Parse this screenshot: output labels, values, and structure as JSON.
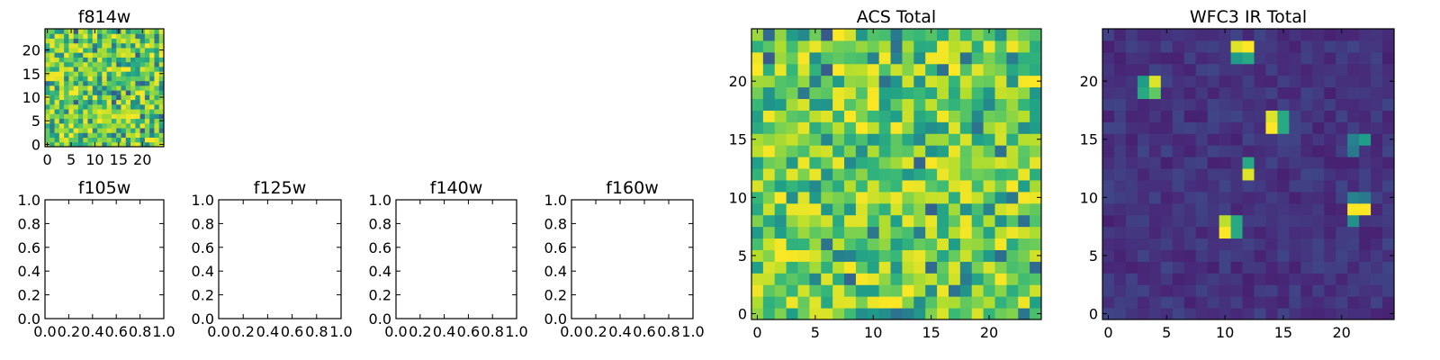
{
  "chart_data": [
    {
      "type": "heatmap",
      "title": "f814w",
      "grid_size": 25,
      "pattern": "noise",
      "xticks": [
        "0",
        "5",
        "10",
        "15",
        "20"
      ],
      "yticks": [
        "0",
        "5",
        "10",
        "15",
        "20"
      ],
      "xlim": [
        -0.5,
        24.5
      ],
      "ylim": [
        -0.5,
        24.5
      ],
      "colormap": "viridis"
    },
    {
      "type": "heatmap",
      "title": "f105w",
      "empty": true,
      "xticks": [
        "0.0",
        "0.2",
        "0.4",
        "0.6",
        "0.8",
        "1.0"
      ],
      "yticks": [
        "0.0",
        "0.2",
        "0.4",
        "0.6",
        "0.8",
        "1.0"
      ],
      "xlim": [
        0,
        1
      ],
      "ylim": [
        0,
        1
      ]
    },
    {
      "type": "heatmap",
      "title": "f125w",
      "empty": true,
      "xticks": [
        "0.0",
        "0.2",
        "0.4",
        "0.6",
        "0.8",
        "1.0"
      ],
      "yticks": [
        "0.0",
        "0.2",
        "0.4",
        "0.6",
        "0.8",
        "1.0"
      ],
      "xlim": [
        0,
        1
      ],
      "ylim": [
        0,
        1
      ]
    },
    {
      "type": "heatmap",
      "title": "f140w",
      "empty": true,
      "xticks": [
        "0.0",
        "0.2",
        "0.4",
        "0.6",
        "0.8",
        "1.0"
      ],
      "yticks": [
        "0.0",
        "0.2",
        "0.4",
        "0.6",
        "0.8",
        "1.0"
      ],
      "xlim": [
        0,
        1
      ],
      "ylim": [
        0,
        1
      ]
    },
    {
      "type": "heatmap",
      "title": "f160w",
      "empty": true,
      "xticks": [
        "0.0",
        "0.2",
        "0.4",
        "0.6",
        "0.8",
        "1.0"
      ],
      "yticks": [
        "0.0",
        "0.2",
        "0.4",
        "0.6",
        "0.8",
        "1.0"
      ],
      "xlim": [
        0,
        1
      ],
      "ylim": [
        0,
        1
      ]
    },
    {
      "type": "heatmap",
      "title": "ACS Total",
      "grid_size": 25,
      "pattern": "noise",
      "xticks": [
        "0",
        "5",
        "10",
        "15",
        "20"
      ],
      "yticks": [
        "0",
        "5",
        "10",
        "15",
        "20"
      ],
      "xlim": [
        -0.5,
        24.5
      ],
      "ylim": [
        -0.5,
        24.5
      ],
      "colormap": "viridis"
    },
    {
      "type": "heatmap",
      "title": "WFC3 IR Total",
      "grid_size": 25,
      "pattern": "sources",
      "background_level": 0.15,
      "bright_pixels": [
        {
          "x": 11,
          "y": 23,
          "v": 0.95
        },
        {
          "x": 12,
          "y": 23,
          "v": 1.0
        },
        {
          "x": 11,
          "y": 22,
          "v": 0.55
        },
        {
          "x": 12,
          "y": 22,
          "v": 0.6
        },
        {
          "x": 3,
          "y": 20,
          "v": 0.55
        },
        {
          "x": 4,
          "y": 20,
          "v": 0.95
        },
        {
          "x": 3,
          "y": 19,
          "v": 0.6
        },
        {
          "x": 4,
          "y": 19,
          "v": 0.75
        },
        {
          "x": 14,
          "y": 17,
          "v": 0.95
        },
        {
          "x": 15,
          "y": 17,
          "v": 0.6
        },
        {
          "x": 14,
          "y": 16,
          "v": 1.0
        },
        {
          "x": 15,
          "y": 16,
          "v": 0.6
        },
        {
          "x": 21,
          "y": 15,
          "v": 0.45
        },
        {
          "x": 22,
          "y": 15,
          "v": 0.55
        },
        {
          "x": 21,
          "y": 14,
          "v": 0.4
        },
        {
          "x": 12,
          "y": 13,
          "v": 0.6
        },
        {
          "x": 12,
          "y": 12,
          "v": 0.95
        },
        {
          "x": 21,
          "y": 10,
          "v": 0.45
        },
        {
          "x": 22,
          "y": 10,
          "v": 0.4
        },
        {
          "x": 21,
          "y": 9,
          "v": 1.0
        },
        {
          "x": 22,
          "y": 9,
          "v": 1.0
        },
        {
          "x": 21,
          "y": 8,
          "v": 0.5
        },
        {
          "x": 10,
          "y": 8,
          "v": 0.9
        },
        {
          "x": 11,
          "y": 8,
          "v": 0.6
        },
        {
          "x": 10,
          "y": 7,
          "v": 1.0
        },
        {
          "x": 11,
          "y": 7,
          "v": 0.6
        }
      ],
      "xticks": [
        "0",
        "5",
        "10",
        "15",
        "20"
      ],
      "yticks": [
        "0",
        "5",
        "10",
        "15",
        "20"
      ],
      "xlim": [
        -0.5,
        24.5
      ],
      "ylim": [
        -0.5,
        24.5
      ],
      "colormap": "viridis"
    }
  ]
}
